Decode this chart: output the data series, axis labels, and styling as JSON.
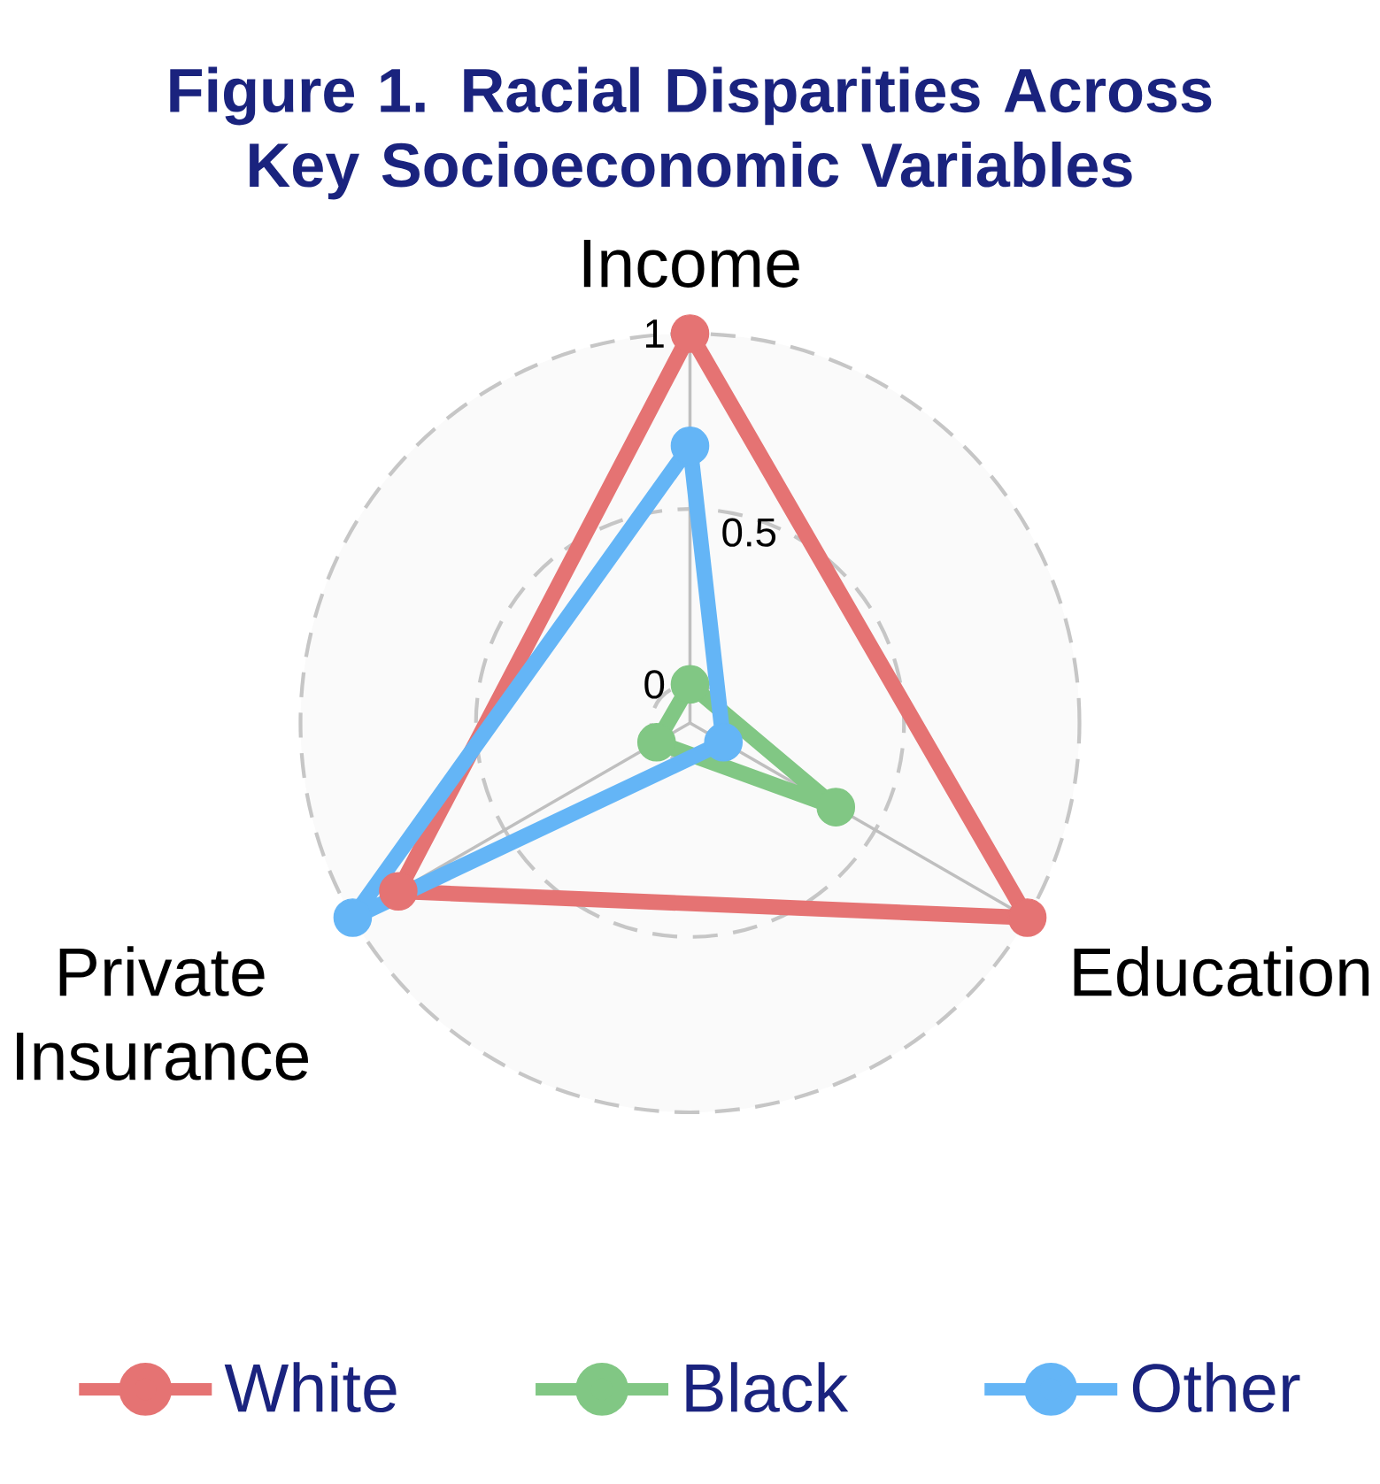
{
  "chart_data": {
    "type": "radar",
    "title": "Figure 1. Racial Disparities Across Key Socioeconomic Variables",
    "categories": [
      "Income",
      "Education",
      "Private Insurance"
    ],
    "series": [
      {
        "name": "White",
        "color": "#e57373",
        "values": [
          1,
          1,
          0.85
        ]
      },
      {
        "name": "Black",
        "color": "#81c784",
        "values": [
          0,
          0.37,
          0
        ]
      },
      {
        "name": "Other",
        "color": "#64b5f6",
        "values": [
          0.68,
          0,
          1
        ]
      }
    ],
    "ylim": [
      -0.11,
      1
    ],
    "yticks": [
      0,
      0.5,
      1
    ],
    "grid": true,
    "legend": "bottom",
    "marker": "circle",
    "line_style": "solid"
  }
}
